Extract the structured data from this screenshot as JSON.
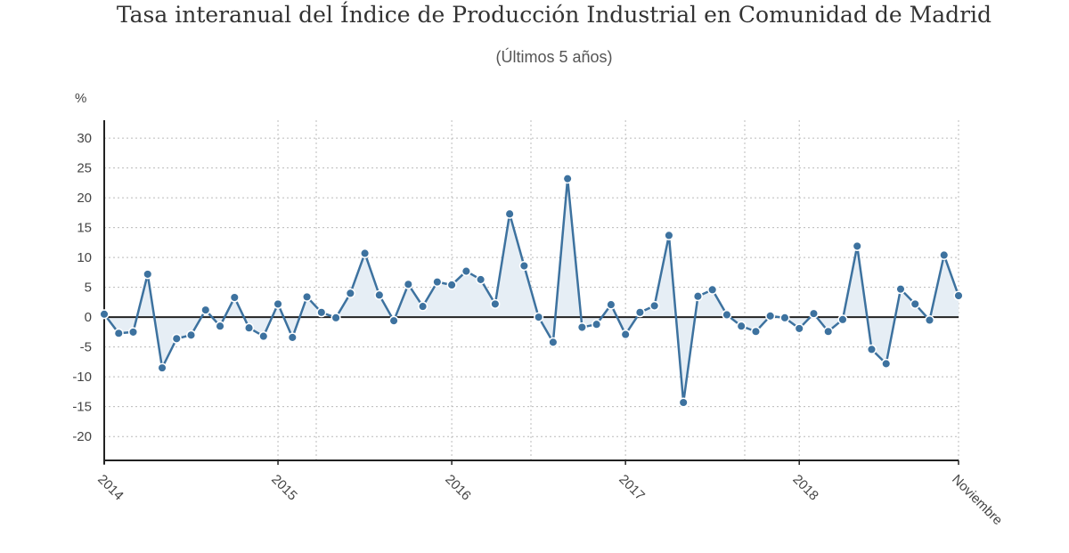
{
  "chart_data": {
    "type": "line",
    "title": "Tasa interanual del Índice de Producción Industrial en Comunidad de Madrid",
    "subtitle": "(Últimos 5 años)",
    "ylabel": "%",
    "xlabel": "",
    "ylim": [
      -24,
      33
    ],
    "yticks": [
      30,
      25,
      20,
      15,
      10,
      5,
      0,
      -5,
      -10,
      -15,
      -20
    ],
    "x_tick_labels": [
      "2014",
      "2015",
      "2016",
      "2017",
      "2018",
      "Noviembre"
    ],
    "x_tick_indices": [
      0,
      12,
      24,
      36,
      48,
      59
    ],
    "grid": true,
    "series": [
      {
        "name": "Tasa interanual",
        "color": "#3d729f",
        "fill": "#e6eef5",
        "values": [
          0.5,
          -2.7,
          -2.5,
          7.2,
          -8.5,
          -3.6,
          -3.0,
          1.2,
          -1.5,
          3.3,
          -1.8,
          -3.2,
          2.2,
          -3.4,
          3.4,
          0.8,
          -0.1,
          4.0,
          10.7,
          3.7,
          -0.6,
          5.5,
          1.8,
          5.9,
          5.4,
          7.7,
          6.3,
          2.2,
          17.3,
          8.6,
          0.0,
          -4.2,
          23.2,
          -1.7,
          -1.2,
          2.1,
          -2.9,
          0.8,
          1.9,
          13.7,
          -14.3,
          3.5,
          4.6,
          0.4,
          -1.5,
          -2.4,
          0.2,
          -0.1,
          -1.9,
          0.6,
          -2.4,
          -0.4,
          11.9,
          -5.4,
          -7.8,
          4.7,
          2.2,
          -0.5,
          10.4,
          3.6
        ]
      }
    ]
  }
}
